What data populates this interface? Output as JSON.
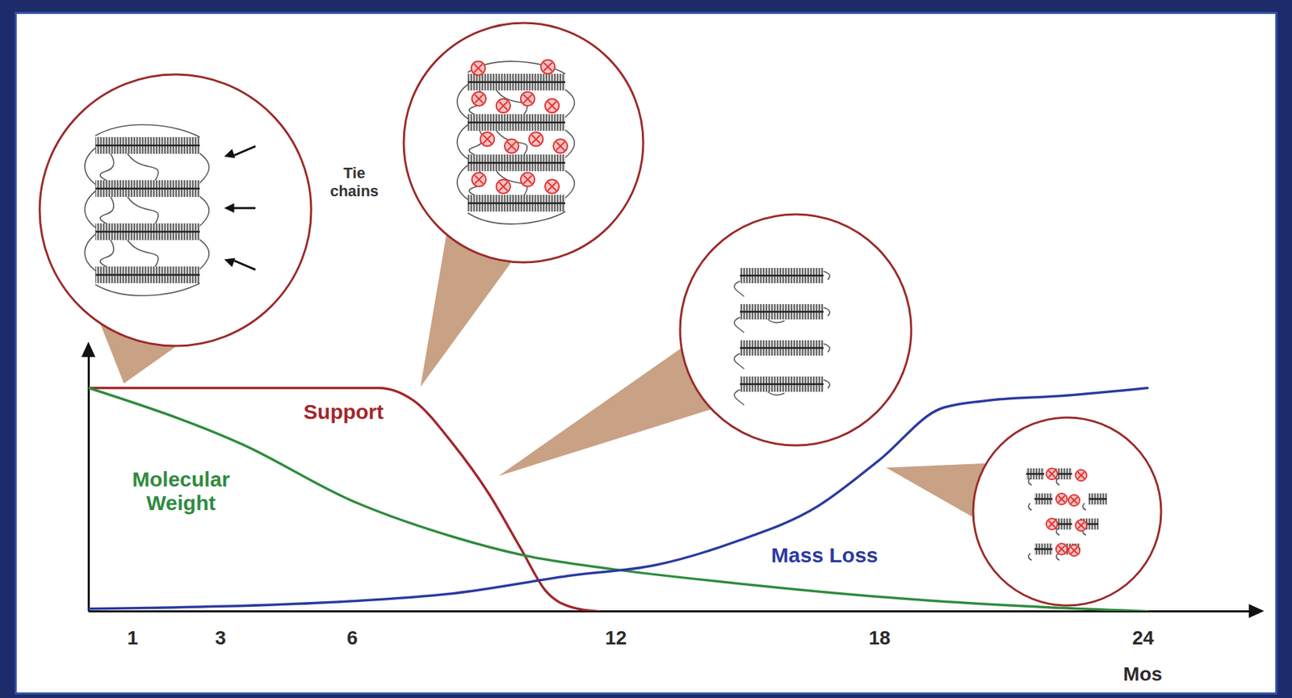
{
  "chart_data": {
    "type": "line",
    "x_label": "Mos",
    "xlim": [
      0,
      26.7
    ],
    "xticks": [
      1,
      3,
      6,
      12,
      18,
      24
    ],
    "ylim": [
      0,
      100
    ],
    "yticks": [],
    "tick_labels": "x",
    "grid": false,
    "annotations": [
      "Tie chains"
    ],
    "series": [
      {
        "name": "Support",
        "color": "#a3262a",
        "x": [
          0,
          6.6,
          7.4,
          8.3,
          9.1,
          9.85,
          10.4,
          11,
          11.6
        ],
        "values": [
          87,
          87,
          82,
          65,
          46,
          24,
          8,
          1.6,
          0
        ]
      },
      {
        "name": "Molecular Weight",
        "color": "#2e8b3e",
        "x": [
          0,
          3.5,
          6,
          8.3,
          9.85,
          11.9,
          14.7,
          18.5,
          21.3,
          24.1
        ],
        "values": [
          87,
          65,
          43,
          29,
          22,
          16.5,
          11,
          5,
          2,
          0
        ]
      },
      {
        "name": "Mass Loss",
        "color": "#2b3aa0",
        "x": [
          0,
          6,
          8.3,
          11,
          12.9,
          14.7,
          16.6,
          18,
          19.4,
          20.4,
          22.2,
          24.1
        ],
        "values": [
          1,
          4,
          7,
          14,
          18,
          27,
          41,
          59,
          79,
          82,
          84,
          87
        ]
      }
    ]
  }
}
